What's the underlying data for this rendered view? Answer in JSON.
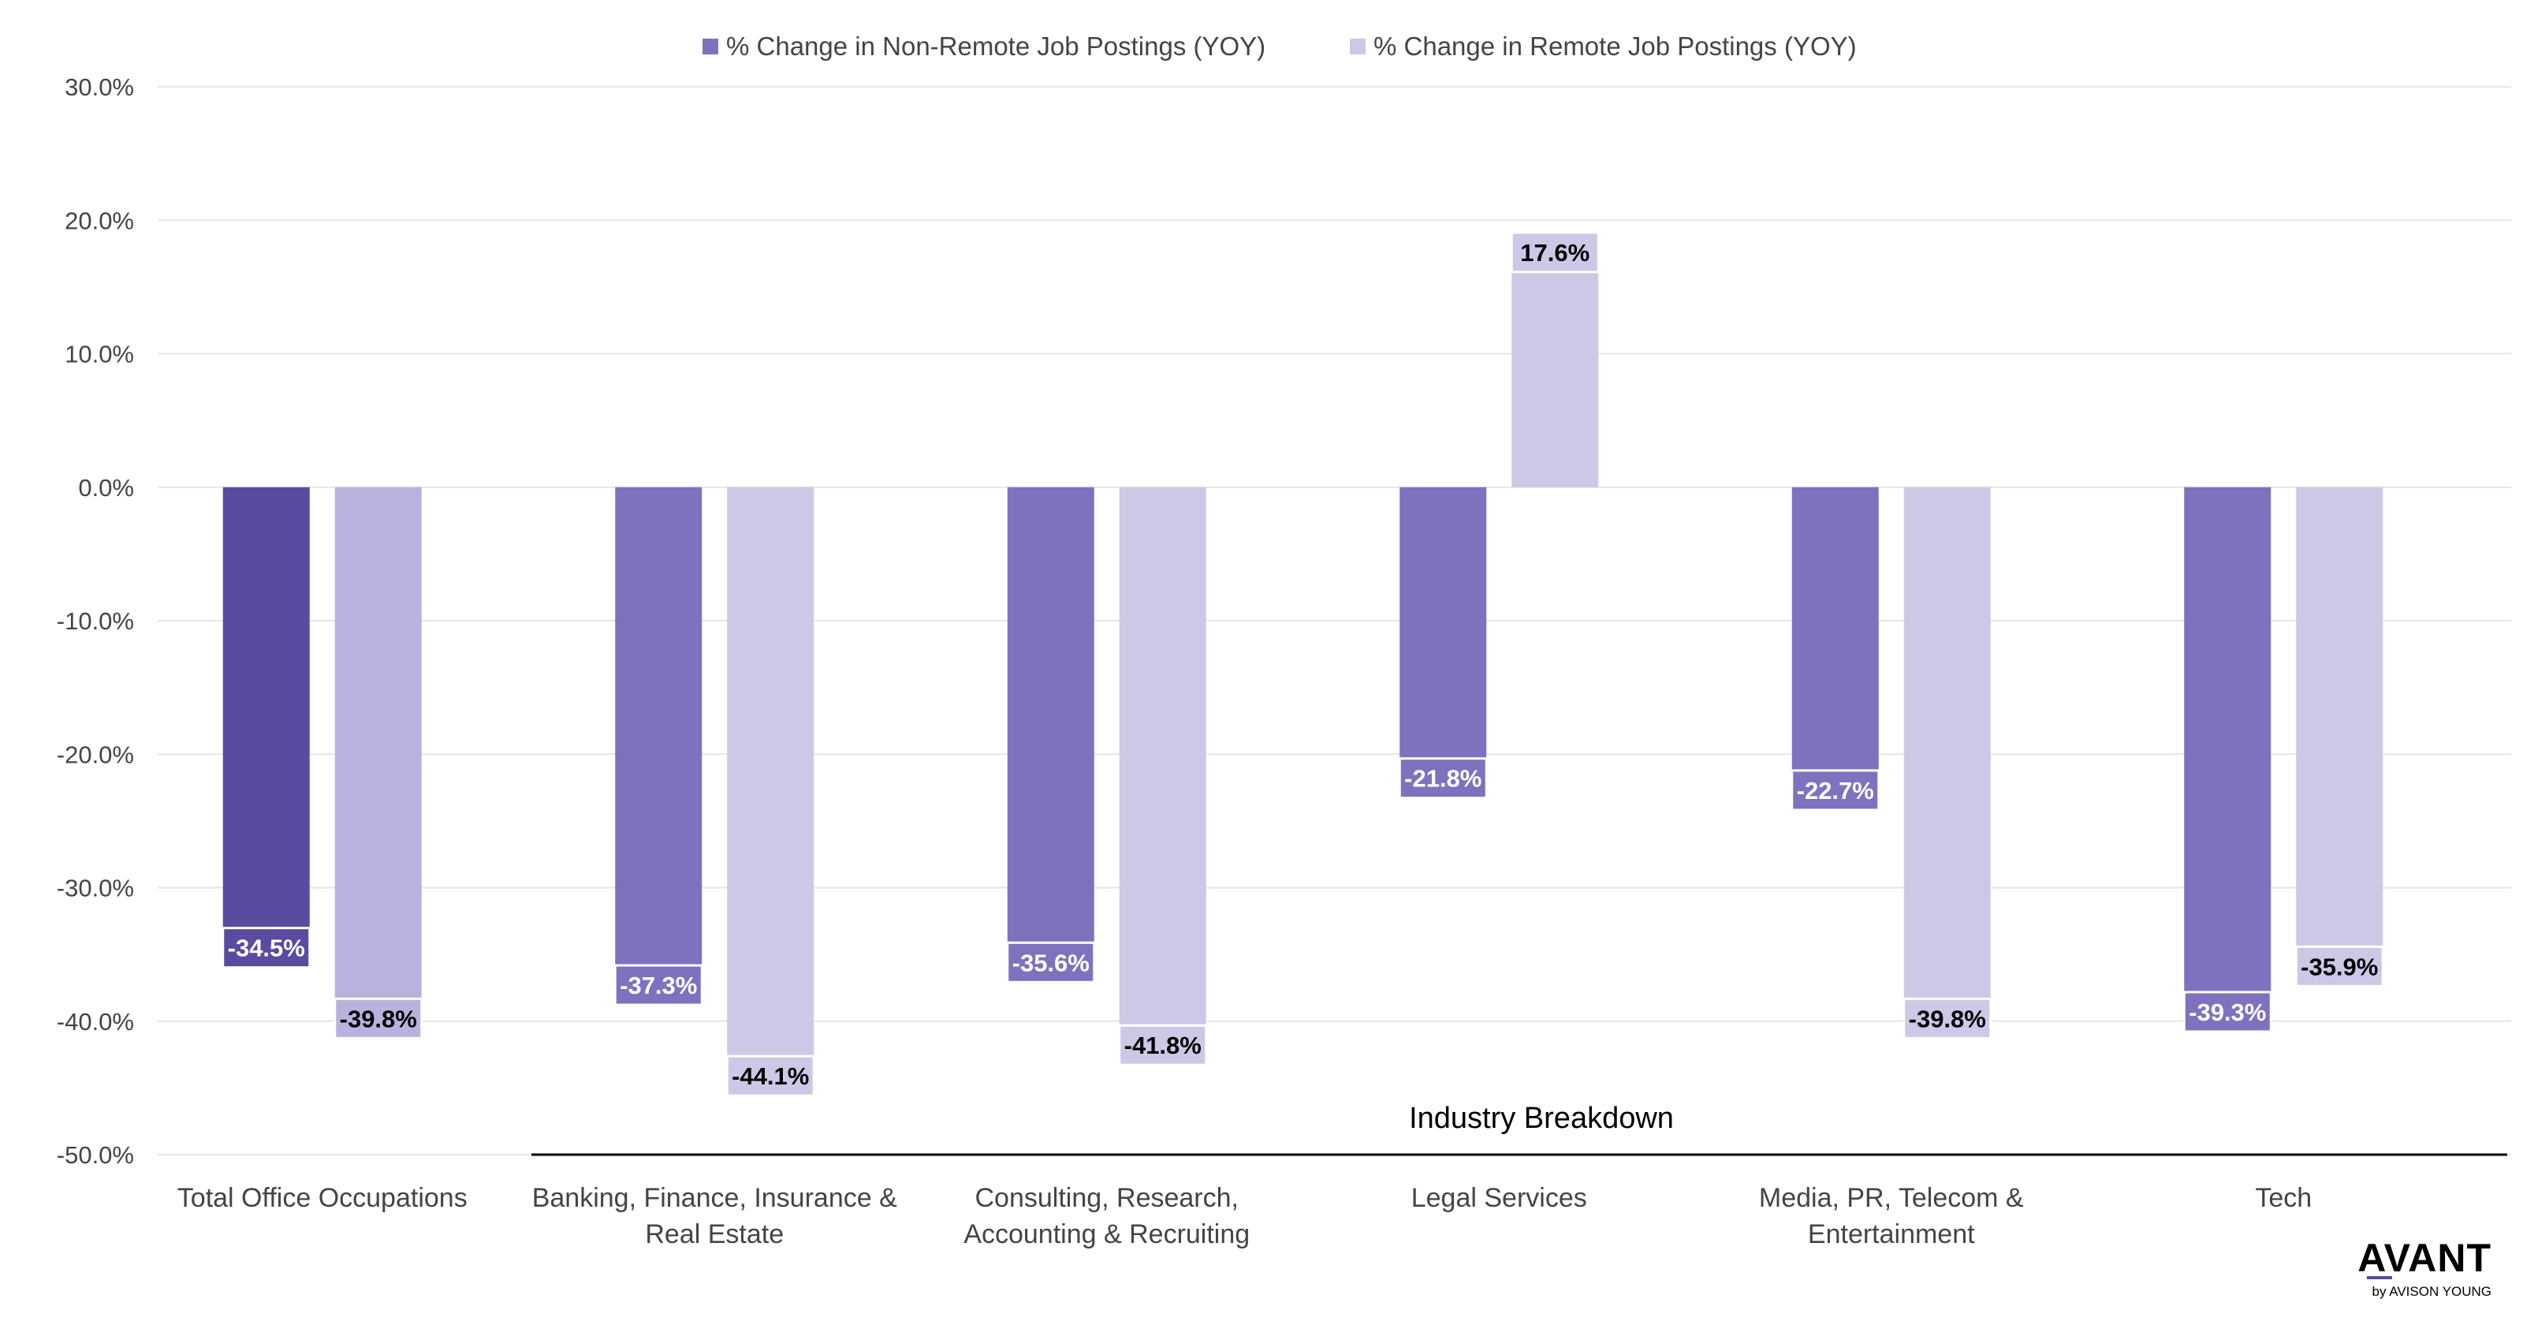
{
  "chart_data": {
    "type": "bar",
    "title": "",
    "xlabel": "",
    "ylabel": "",
    "ylim": [
      -50,
      30
    ],
    "yticks": [
      30,
      20,
      10,
      0,
      -10,
      -20,
      -30,
      -40,
      -50
    ],
    "ytick_labels": [
      "30.0%",
      "20.0%",
      "10.0%",
      "0.0%",
      "-10.0%",
      "-20.0%",
      "-30.0%",
      "-40.0%",
      "-50.0%"
    ],
    "grid": true,
    "legend_position": "top-center",
    "categories": [
      [
        "Total Office Occupations"
      ],
      [
        "Banking, Finance, Insurance &",
        "Real Estate"
      ],
      [
        "Consulting, Research,",
        "Accounting & Recruiting"
      ],
      [
        "Legal Services"
      ],
      [
        "Media, PR, Telecom &",
        "Entertainment"
      ],
      [
        "Tech"
      ]
    ],
    "series": [
      {
        "name": "% Change in Non-Remote Job Postings (YOY)",
        "legend_color": "#7e72bf",
        "colors": [
          "#5a4ba0",
          "#7e72bf",
          "#7e72bf",
          "#7e72bf",
          "#7e72bf",
          "#7e72bf"
        ],
        "label_text_color": "#ffffff",
        "values": [
          -34.5,
          -37.3,
          -35.6,
          -21.8,
          -22.7,
          -39.3
        ],
        "data_labels": [
          "-34.5%",
          "-37.3%",
          "-35.6%",
          "-21.8%",
          "-22.7%",
          "-39.3%"
        ]
      },
      {
        "name": "% Change in Remote Job Postings (YOY)",
        "legend_color": "#cdc8e6",
        "colors": [
          "#b9b2de",
          "#cdc8e6",
          "#cdc8e6",
          "#cdc8e6",
          "#cdc8e6",
          "#cdc8e6"
        ],
        "label_text_color": "#000000",
        "values": [
          -39.8,
          -44.1,
          -41.8,
          17.6,
          -39.8,
          -35.9
        ],
        "data_labels": [
          "-39.8%",
          "-44.1%",
          "-41.8%",
          "17.6%",
          "-39.8%",
          "-35.9%"
        ]
      }
    ],
    "annotations": [
      {
        "text": "Industry Breakdown",
        "spans_categories": [
          1,
          5
        ]
      }
    ]
  },
  "branding": {
    "name": "AVANT",
    "sub": "by AVISON YOUNG",
    "accent": "#5a4ba0"
  }
}
